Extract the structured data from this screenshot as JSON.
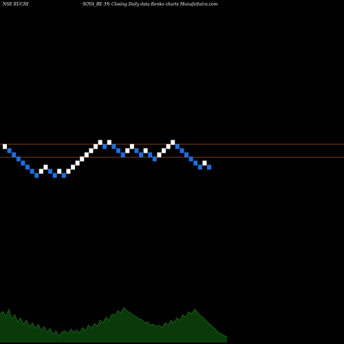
{
  "header": {
    "symbol": "NSE RUCHI",
    "caption": "SOYA_BE 3% Closing Daily data  Renko  charts MunafaSutra.com"
  },
  "colors": {
    "background": "#000000",
    "up_brick": "#ffffff",
    "down_brick": "#1f6fe0",
    "level_line": "#a0521a",
    "volume_fill": "#0a3a0a",
    "volume_line": "#1e6b1e"
  },
  "chart_data": {
    "type": "renko",
    "brick_size_percent": 3,
    "reference_levels": [
      1.0,
      0.68
    ],
    "bricks": [
      {
        "dir": "up",
        "level": 1
      },
      {
        "dir": "down",
        "level": 0
      },
      {
        "dir": "down",
        "level": -1
      },
      {
        "dir": "down",
        "level": -2
      },
      {
        "dir": "down",
        "level": -3
      },
      {
        "dir": "down",
        "level": -4
      },
      {
        "dir": "down",
        "level": -5
      },
      {
        "dir": "down",
        "level": -6
      },
      {
        "dir": "up",
        "level": -5
      },
      {
        "dir": "up",
        "level": -4
      },
      {
        "dir": "down",
        "level": -5
      },
      {
        "dir": "down",
        "level": -6
      },
      {
        "dir": "up",
        "level": -5
      },
      {
        "dir": "down",
        "level": -6
      },
      {
        "dir": "up",
        "level": -5
      },
      {
        "dir": "up",
        "level": -4
      },
      {
        "dir": "up",
        "level": -3
      },
      {
        "dir": "up",
        "level": -2
      },
      {
        "dir": "up",
        "level": -1
      },
      {
        "dir": "up",
        "level": 0
      },
      {
        "dir": "up",
        "level": 1
      },
      {
        "dir": "up",
        "level": 2
      },
      {
        "dir": "down",
        "level": 1
      },
      {
        "dir": "up",
        "level": 2
      },
      {
        "dir": "down",
        "level": 1
      },
      {
        "dir": "down",
        "level": 0
      },
      {
        "dir": "down",
        "level": -1
      },
      {
        "dir": "up",
        "level": 0
      },
      {
        "dir": "up",
        "level": 1
      },
      {
        "dir": "down",
        "level": 0
      },
      {
        "dir": "down",
        "level": -1
      },
      {
        "dir": "up",
        "level": 0
      },
      {
        "dir": "down",
        "level": -1
      },
      {
        "dir": "down",
        "level": -2
      },
      {
        "dir": "up",
        "level": -1
      },
      {
        "dir": "up",
        "level": 0
      },
      {
        "dir": "up",
        "level": 1
      },
      {
        "dir": "up",
        "level": 2
      },
      {
        "dir": "down",
        "level": 1
      },
      {
        "dir": "down",
        "level": 0
      },
      {
        "dir": "down",
        "level": -1
      },
      {
        "dir": "down",
        "level": -2
      },
      {
        "dir": "down",
        "level": -3
      },
      {
        "dir": "down",
        "level": -4
      },
      {
        "dir": "up",
        "level": -3
      },
      {
        "dir": "down",
        "level": -4
      }
    ],
    "volume": [
      0.72,
      0.78,
      0.66,
      0.84,
      0.6,
      0.7,
      0.52,
      0.62,
      0.46,
      0.56,
      0.4,
      0.5,
      0.36,
      0.46,
      0.3,
      0.4,
      0.26,
      0.36,
      0.2,
      0.3,
      0.16,
      0.26,
      0.3,
      0.22,
      0.34,
      0.26,
      0.32,
      0.24,
      0.38,
      0.3,
      0.44,
      0.36,
      0.48,
      0.42,
      0.56,
      0.5,
      0.64,
      0.56,
      0.72,
      0.68,
      0.8,
      0.74,
      0.88,
      0.8,
      0.76,
      0.7,
      0.66,
      0.6,
      0.58,
      0.5,
      0.52,
      0.44,
      0.46,
      0.4,
      0.44,
      0.38,
      0.5,
      0.44,
      0.56,
      0.5,
      0.62,
      0.56,
      0.7,
      0.64,
      0.78,
      0.72,
      0.84,
      0.76,
      0.68,
      0.62,
      0.54,
      0.48,
      0.4,
      0.34,
      0.26,
      0.22,
      0.18,
      0.14
    ]
  }
}
